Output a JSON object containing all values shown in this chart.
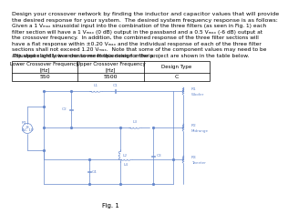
{
  "title_text": "Design your crossover network by finding the inductor and capacitor values that will provide\nthe desired response for your system.  The desired system frequency response is as follows:",
  "body_text1": "Given a 1 Vₘₐₓ sinusoidal input into the combination of the three filters (as seen in Fig. 1) each\nfilter section will have a 1 Vₘₐₓ (0 dB) output in the passband and a 0.5 Vₘₐₓ (-6 dB) output at\nthe crossover frequency.  In addition, the combined response of the three filter sections will\nhave a flat response within ±0.20 Vₘₐₓ and the individual response of each of the three filter\nsections shall not exceed 1.20 Vₘₐₓ.  Note that some of the component values may need to be\nadjusted slightly in order to meet this design criteria.",
  "body_text2": "The upper and lower crossover frequencies for the project are shown in the table below.",
  "table_headers": [
    "Lower Crossover Frequency\n[Hz]",
    "Upper Crossover Frequency\n[Hz]",
    "Design Type"
  ],
  "table_values": [
    "550",
    "5500",
    "C"
  ],
  "fig_caption": "Fig. 1",
  "background_color": "#ffffff",
  "text_color": "#000000",
  "circuit_color": "#6688cc",
  "font_size_title": 4.5,
  "font_size_body": 4.2,
  "font_size_table_hdr": 4.0,
  "font_size_table_val": 4.5,
  "font_size_caption": 5.0,
  "font_size_circuit_label": 3.2
}
